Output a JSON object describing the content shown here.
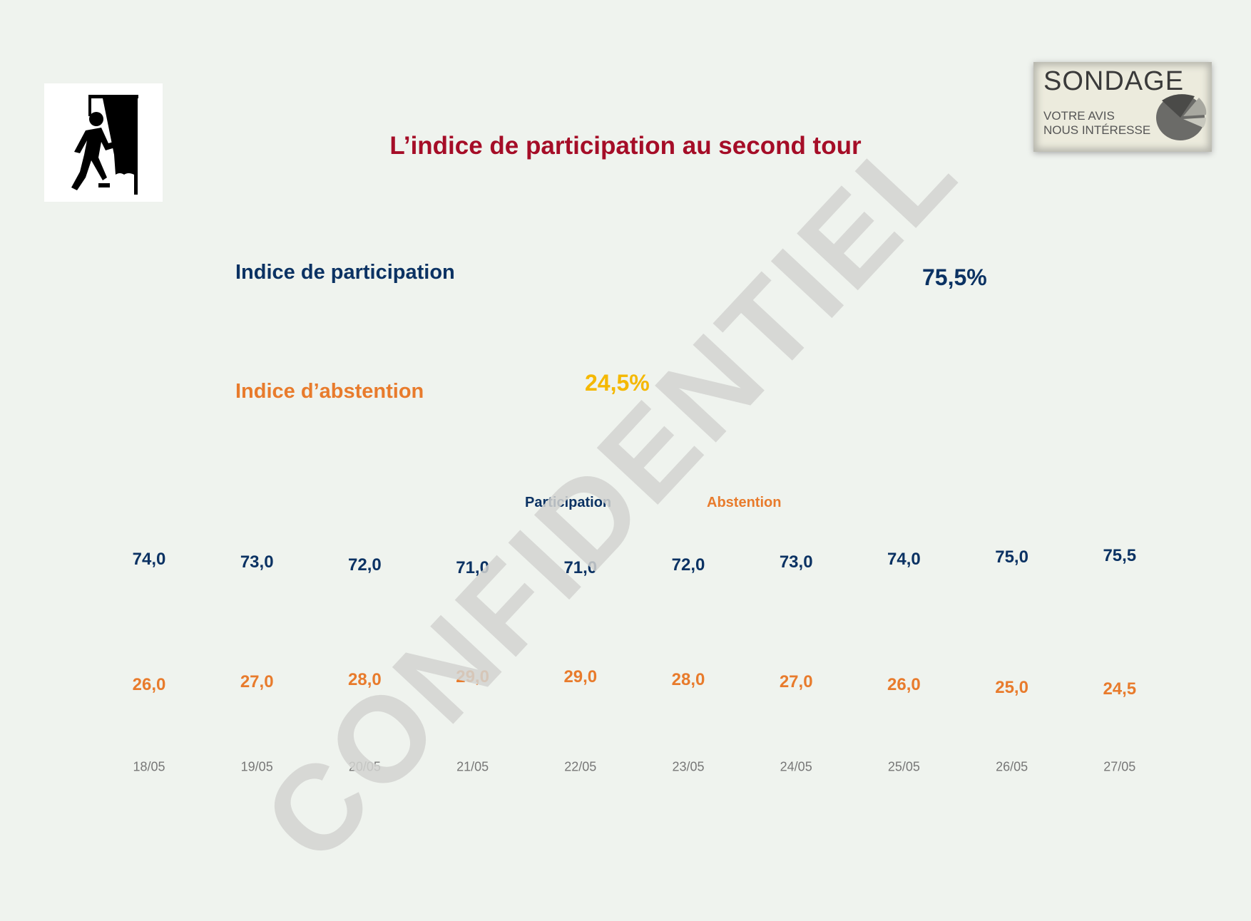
{
  "title": "L’indice de participation au second tour",
  "logo": {
    "line1": "SONDAGE",
    "line2": "VOTRE AVIS",
    "line3": "NOUS INTÉRESSE"
  },
  "watermark": "CONFIDENTIEL",
  "summary": {
    "participation_label": "Indice de participation",
    "participation_value": "75,5%",
    "abstention_label": "Indice d’abstention",
    "abstention_value": "24,5%"
  },
  "colors": {
    "participation": "#0b3263",
    "abstention": "#e87b2c",
    "abstention_highlight": "#f5b800",
    "title": "#a50d27"
  },
  "icons": {
    "left": "voting-booth-icon",
    "right": "pie-chart-icon"
  },
  "chart_data": {
    "type": "line",
    "title": "",
    "categories": [
      "18/05",
      "19/05",
      "20/05",
      "21/05",
      "22/05",
      "23/05",
      "24/05",
      "25/05",
      "26/05",
      "27/05"
    ],
    "legend": [
      "Participation",
      "Abstention"
    ],
    "legend_position": "top",
    "grid": false,
    "series": [
      {
        "name": "Participation",
        "values": [
          74.0,
          73.0,
          72.0,
          71.0,
          71.0,
          72.0,
          73.0,
          74.0,
          75.0,
          75.5
        ],
        "labels": [
          "74,0",
          "73,0",
          "72,0",
          "71,0",
          "71,0",
          "72,0",
          "73,0",
          "74,0",
          "75,0",
          "75,5"
        ]
      },
      {
        "name": "Abstention",
        "values": [
          26.0,
          27.0,
          28.0,
          29.0,
          29.0,
          28.0,
          27.0,
          26.0,
          25.0,
          24.5
        ],
        "labels": [
          "26,0",
          "27,0",
          "28,0",
          "29,0",
          "29,0",
          "28,0",
          "27,0",
          "26,0",
          "25,0",
          "24,5"
        ]
      }
    ]
  }
}
